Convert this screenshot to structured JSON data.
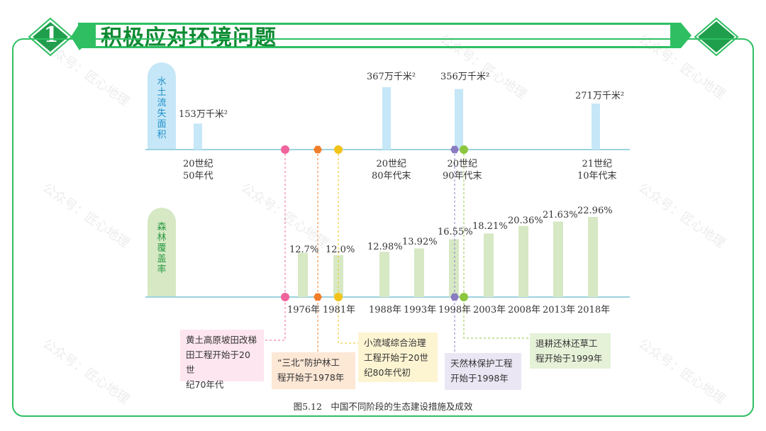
{
  "header": {
    "number": "1",
    "title": "积极应对环境问题"
  },
  "erosion": {
    "axis_label": [
      "水",
      "土",
      "流",
      "失",
      "面",
      "积"
    ],
    "bars": [
      {
        "period": [
          "20世纪",
          "50年代"
        ],
        "value": 153,
        "label": "153万千米²"
      },
      {
        "period": [
          "20世纪",
          "80年代末"
        ],
        "value": 367,
        "label": "367万千米²"
      },
      {
        "period": [
          "20世纪",
          "90年代末"
        ],
        "value": 356,
        "label": "356万千米²"
      },
      {
        "period": [
          "21世纪",
          "10年代末"
        ],
        "value": 271,
        "label": "271万千米²"
      }
    ]
  },
  "forest": {
    "axis_label": [
      "森",
      "林",
      "覆",
      "盖",
      "率"
    ],
    "bars": [
      {
        "year": "1976年",
        "value": 12.7,
        "label": "12.7%"
      },
      {
        "year": "1981年",
        "value": 12.0,
        "label": "12.0%"
      },
      {
        "year": "1988年",
        "value": 12.98,
        "label": "12.98%"
      },
      {
        "year": "1993年",
        "value": 13.92,
        "label": "13.92%"
      },
      {
        "year": "1998年",
        "value": 16.55,
        "label": "16.55%"
      },
      {
        "year": "2003年",
        "value": 18.21,
        "label": "18.21%"
      },
      {
        "year": "2008年",
        "value": 20.36,
        "label": "20.36%"
      },
      {
        "year": "2013年",
        "value": 21.63,
        "label": "21.63%"
      },
      {
        "year": "2018年",
        "value": 22.96,
        "label": "22.96%"
      }
    ]
  },
  "measures": [
    {
      "text": [
        "黄土高原坡田改梯",
        "田工程开始于20世",
        "纪70年代"
      ],
      "color": "#f0649c",
      "bg": "#fde6ef"
    },
    {
      "text": [
        "“三北”防护林工",
        "程开始于1978年"
      ],
      "color": "#f07d2a",
      "bg": "#fde7d5"
    },
    {
      "text": [
        "小流域综合治理",
        "工程开始于20世",
        "纪80年代初"
      ],
      "color": "#f2c318",
      "bg": "#fdf4d2"
    },
    {
      "text": [
        "天然林保护工程",
        "开始于1998年"
      ],
      "color": "#8a7cc0",
      "bg": "#ebe6f4"
    },
    {
      "text": [
        "退耕还林还草工",
        "程开始于1999年"
      ],
      "color": "#8cc63f",
      "bg": "#e6f2d8"
    }
  ],
  "caption": "图5.12　中国不同阶段的生态建设措施及成效",
  "watermark": "公众号：匠心地理",
  "colors": {
    "accent": "#2fbf62",
    "erosion_bar": "#c6e7f7",
    "forest_bar": "#d6e8c4",
    "axis": "#7fc3d6"
  }
}
